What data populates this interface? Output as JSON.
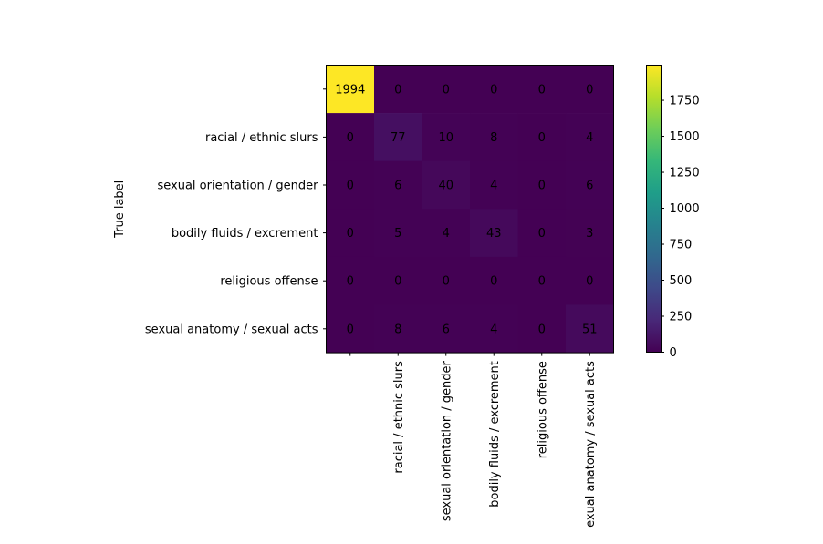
{
  "chart_data": {
    "type": "heatmap",
    "title": "",
    "xlabel": "",
    "ylabel": "True label",
    "row_labels": [
      "",
      "racial / ethnic slurs",
      "sexual orientation / gender",
      "bodily fluids / excrement",
      "religious offense",
      "sexual anatomy / sexual acts"
    ],
    "col_labels": [
      "",
      "racial / ethnic slurs",
      "sexual orientation / gender",
      "bodily fluids / excrement",
      "religious offense",
      "exual anatomy / sexual acts"
    ],
    "matrix": [
      [
        1994,
        0,
        0,
        0,
        0,
        0
      ],
      [
        0,
        77,
        10,
        8,
        0,
        4
      ],
      [
        0,
        6,
        40,
        4,
        0,
        6
      ],
      [
        0,
        5,
        4,
        43,
        0,
        3
      ],
      [
        0,
        0,
        0,
        0,
        0,
        0
      ],
      [
        0,
        8,
        6,
        4,
        0,
        51
      ]
    ],
    "colormap": "viridis",
    "vmin": 0,
    "vmax": 1994,
    "colorbar_ticks": [
      0,
      250,
      500,
      750,
      1000,
      1250,
      1500,
      1750
    ],
    "colorbar_tick_labels": [
      "0",
      "250",
      "500",
      "750",
      "1000",
      "1250",
      "1500",
      "1750"
    ],
    "colors": {
      "text_on_dark": "#fde725",
      "text_on_light": "#440154",
      "axis": "#000000"
    }
  }
}
